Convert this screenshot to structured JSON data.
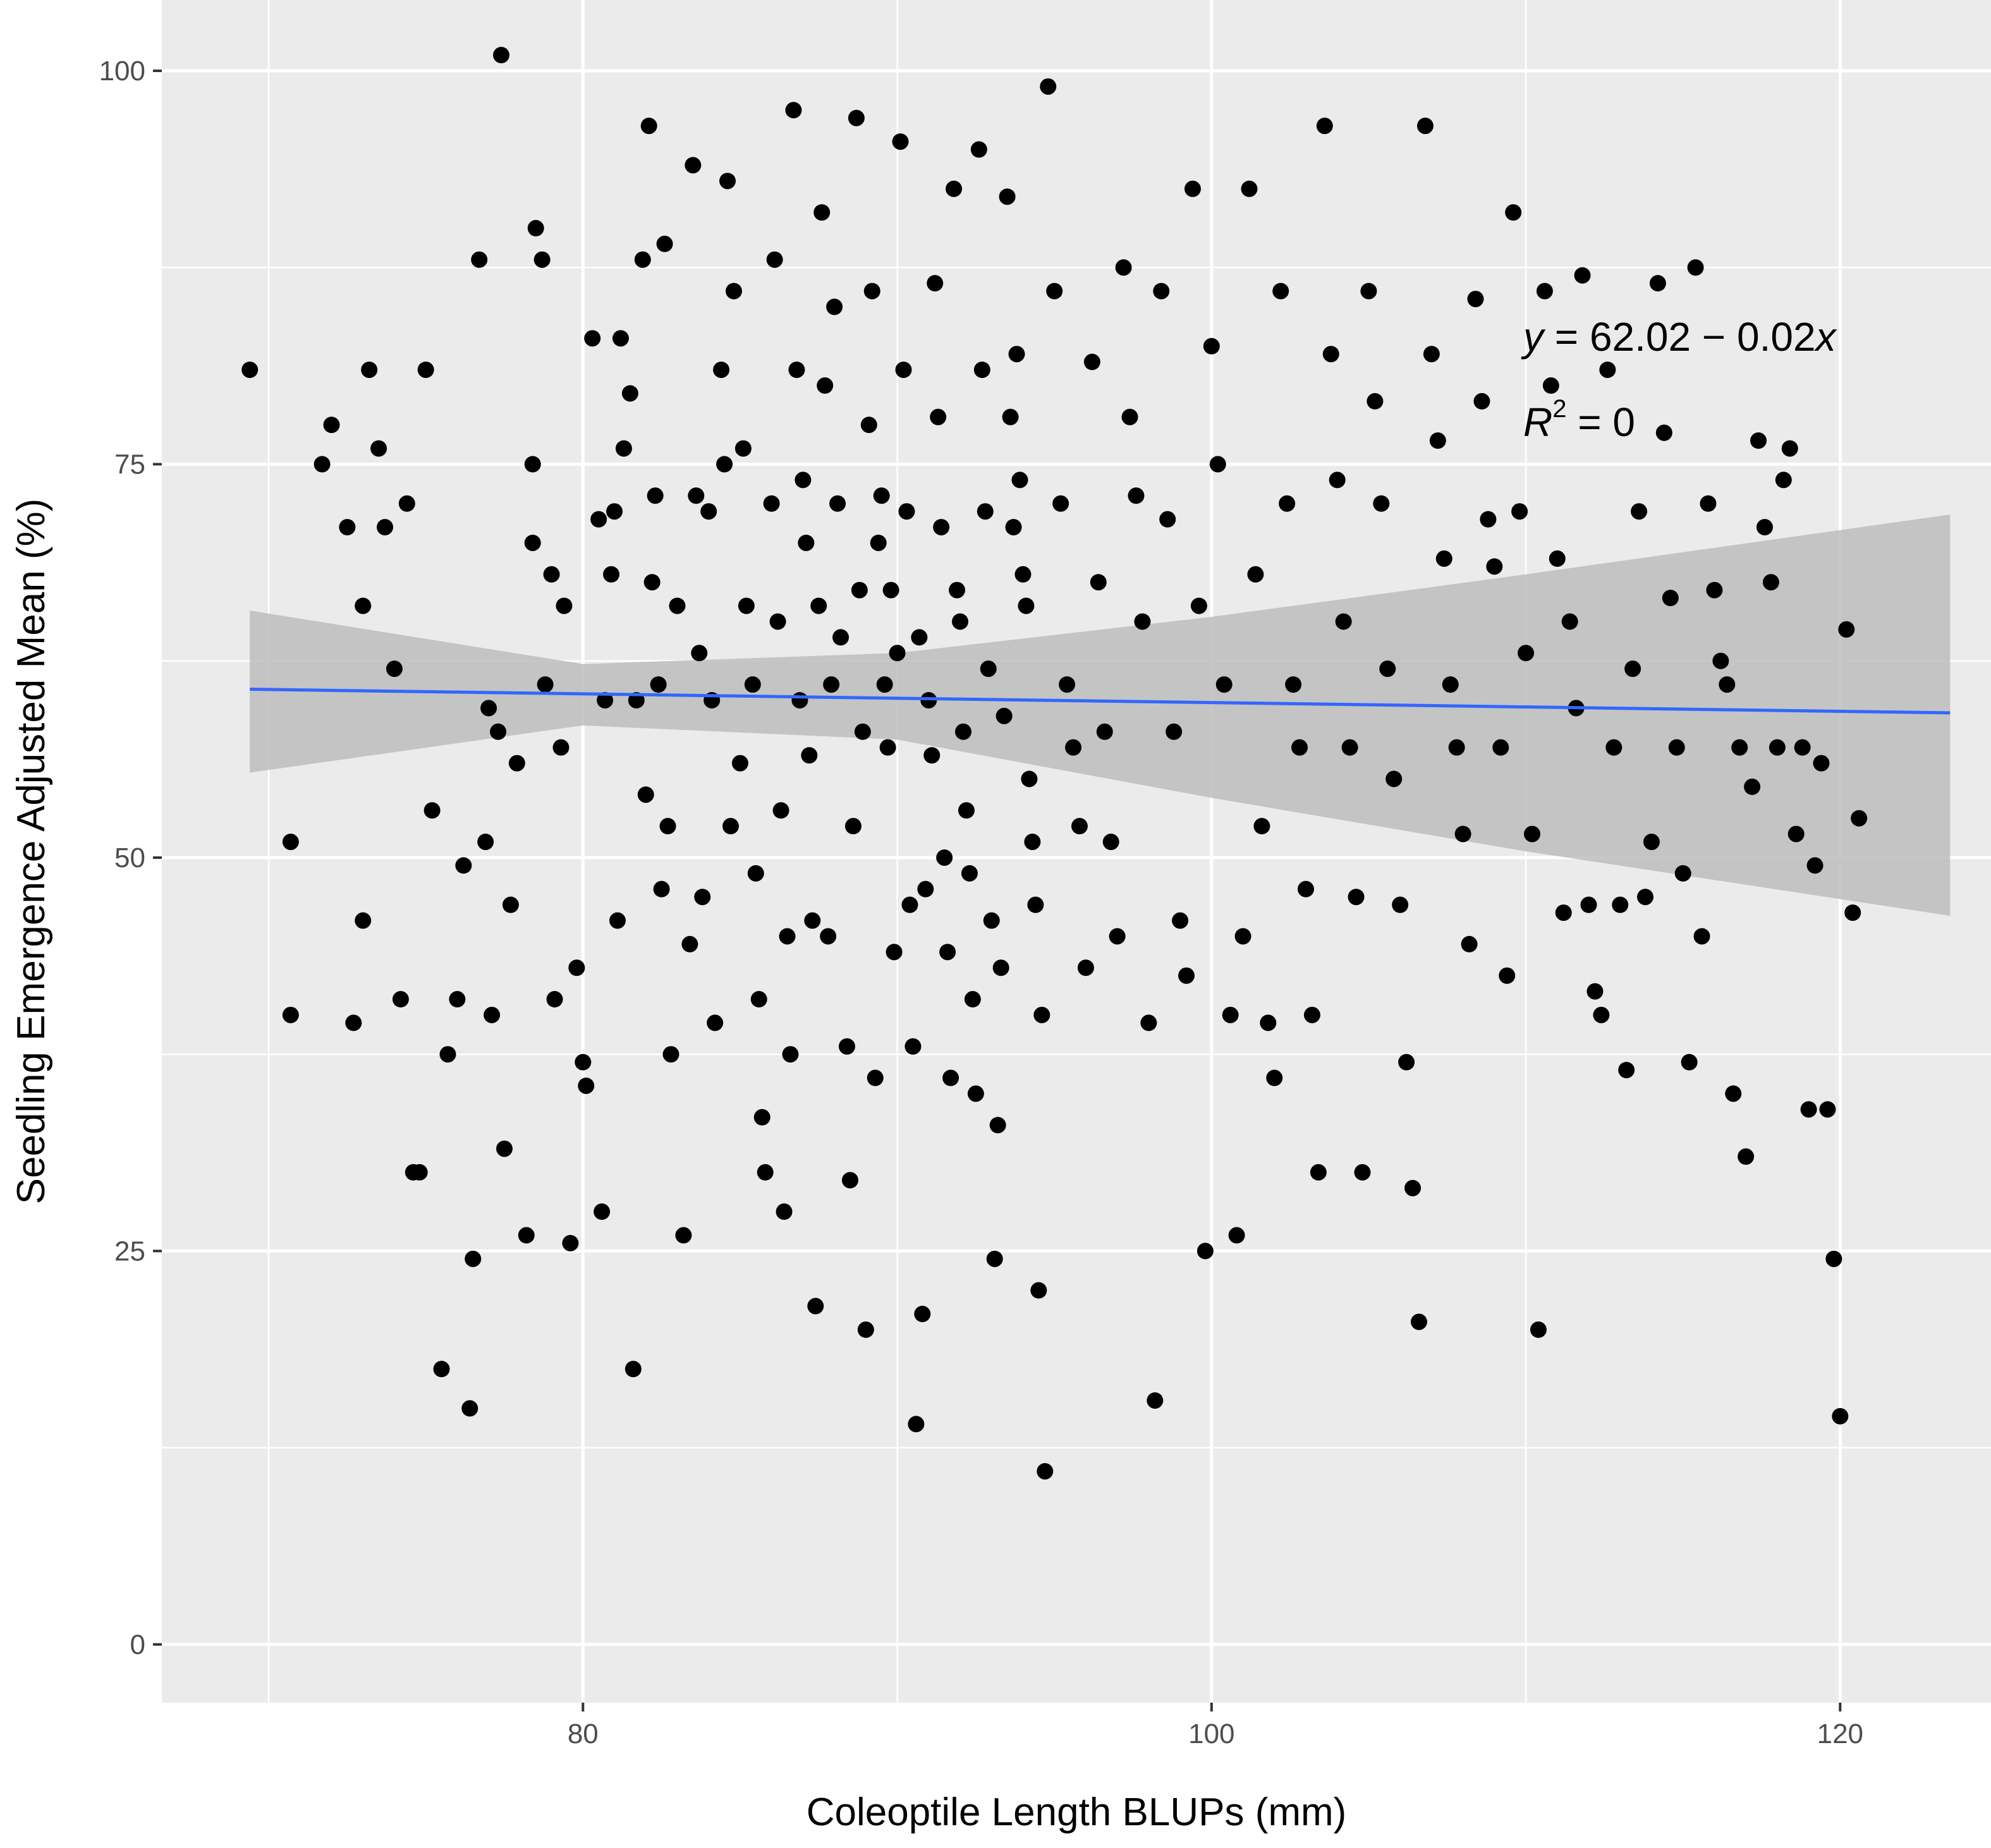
{
  "chart_data": {
    "type": "scatter",
    "title": "",
    "xlabel": "Coleoptile Length BLUPs (mm)",
    "ylabel": "Seedling Emergence Adjusted Mean (%)",
    "xlim": [
      66.6,
      124.8
    ],
    "ylim": [
      -3.7,
      104.5
    ],
    "xticks": [
      80,
      100,
      120
    ],
    "yticks": [
      0,
      25,
      50,
      75,
      100
    ],
    "grid": true,
    "legend": "none",
    "annotation": {
      "equation_y": "y",
      "equation_rhs": " = 62.02 − 0.02",
      "equation_x": "x",
      "r2_label": "R",
      "r2_sup": "2",
      "r2_rhs": " = 0"
    },
    "colors": {
      "panel": "#ebebeb",
      "grid": "#ffffff",
      "point": "#000000",
      "fit_line": "#3366ff",
      "ribbon": "#bdbdbd"
    },
    "fit": {
      "x": [
        69.4,
        123.5
      ],
      "y": [
        60.7,
        59.2
      ]
    },
    "ribbon": {
      "x": [
        69.4,
        80.0,
        90.0,
        100.0,
        110.0,
        123.5
      ],
      "upper": [
        65.7,
        62.3,
        63.0,
        65.3,
        68.0,
        71.8
      ],
      "lower": [
        55.4,
        58.4,
        57.5,
        53.8,
        50.4,
        46.3
      ]
    },
    "points": [
      [
        69.4,
        81
      ],
      [
        70.7,
        51
      ],
      [
        70.7,
        40
      ],
      [
        71.7,
        75
      ],
      [
        72,
        77.5
      ],
      [
        72.5,
        71
      ],
      [
        73,
        66
      ],
      [
        73.2,
        81
      ],
      [
        72.7,
        39.5
      ],
      [
        73,
        46
      ],
      [
        73.5,
        76
      ],
      [
        73.7,
        71
      ],
      [
        74,
        62
      ],
      [
        74.2,
        41
      ],
      [
        74.4,
        72.5
      ],
      [
        74.6,
        30
      ],
      [
        74.8,
        30
      ],
      [
        75,
        81
      ],
      [
        75.2,
        53
      ],
      [
        75.5,
        17.5
      ],
      [
        75.7,
        37.5
      ],
      [
        76,
        41
      ],
      [
        76.2,
        49.5
      ],
      [
        76.4,
        15
      ],
      [
        76.5,
        24.5
      ],
      [
        76.7,
        88
      ],
      [
        76.9,
        51
      ],
      [
        77,
        59.5
      ],
      [
        77.1,
        40
      ],
      [
        77.3,
        58
      ],
      [
        77.4,
        101
      ],
      [
        77.5,
        31.5
      ],
      [
        77.7,
        47
      ],
      [
        77.9,
        56
      ],
      [
        78.2,
        26
      ],
      [
        78.4,
        75
      ],
      [
        78.4,
        70
      ],
      [
        78.5,
        90
      ],
      [
        78.7,
        88
      ],
      [
        78.8,
        61
      ],
      [
        79,
        68
      ],
      [
        79.1,
        41
      ],
      [
        79.3,
        57
      ],
      [
        79.4,
        66
      ],
      [
        79.6,
        25.5
      ],
      [
        79.8,
        43
      ],
      [
        80,
        37
      ],
      [
        80.1,
        35.5
      ],
      [
        80.3,
        83
      ],
      [
        80.5,
        71.5
      ],
      [
        80.6,
        27.5
      ],
      [
        80.7,
        60
      ],
      [
        80.9,
        68
      ],
      [
        81,
        72
      ],
      [
        81.1,
        46
      ],
      [
        81.2,
        83
      ],
      [
        81.3,
        76
      ],
      [
        81.5,
        79.5
      ],
      [
        81.6,
        17.5
      ],
      [
        81.7,
        60
      ],
      [
        81.9,
        88
      ],
      [
        82,
        54
      ],
      [
        82.1,
        96.5
      ],
      [
        82.2,
        67.5
      ],
      [
        82.3,
        73
      ],
      [
        82.4,
        61
      ],
      [
        82.5,
        48
      ],
      [
        82.6,
        89
      ],
      [
        82.7,
        52
      ],
      [
        82.8,
        37.5
      ],
      [
        83,
        66
      ],
      [
        83.2,
        26
      ],
      [
        83.4,
        44.5
      ],
      [
        83.5,
        94
      ],
      [
        83.6,
        73
      ],
      [
        83.7,
        63
      ],
      [
        83.8,
        47.5
      ],
      [
        84,
        72
      ],
      [
        84.1,
        60
      ],
      [
        84.2,
        39.5
      ],
      [
        84.4,
        81
      ],
      [
        84.5,
        75
      ],
      [
        84.6,
        93
      ],
      [
        84.7,
        52
      ],
      [
        84.8,
        86
      ],
      [
        85,
        56
      ],
      [
        85.1,
        76
      ],
      [
        85.2,
        66
      ],
      [
        85.4,
        61
      ],
      [
        85.5,
        49
      ],
      [
        85.6,
        41
      ],
      [
        85.7,
        33.5
      ],
      [
        85.8,
        30
      ],
      [
        86,
        72.5
      ],
      [
        86.1,
        88
      ],
      [
        86.2,
        65
      ],
      [
        86.3,
        53
      ],
      [
        86.4,
        27.5
      ],
      [
        86.5,
        45
      ],
      [
        86.6,
        37.5
      ],
      [
        86.7,
        97.5
      ],
      [
        86.8,
        81
      ],
      [
        86.9,
        60
      ],
      [
        87,
        74
      ],
      [
        87.1,
        70
      ],
      [
        87.2,
        56.5
      ],
      [
        87.3,
        46
      ],
      [
        87.4,
        21.5
      ],
      [
        87.5,
        66
      ],
      [
        87.6,
        91
      ],
      [
        87.7,
        80
      ],
      [
        87.8,
        45
      ],
      [
        87.9,
        61
      ],
      [
        88,
        85
      ],
      [
        88.1,
        72.5
      ],
      [
        88.2,
        64
      ],
      [
        88.4,
        38
      ],
      [
        88.5,
        29.5
      ],
      [
        88.6,
        52
      ],
      [
        88.7,
        97
      ],
      [
        88.8,
        67
      ],
      [
        88.9,
        58
      ],
      [
        89,
        20
      ],
      [
        89.1,
        77.5
      ],
      [
        89.2,
        86
      ],
      [
        89.3,
        36
      ],
      [
        89.4,
        70
      ],
      [
        89.5,
        73
      ],
      [
        89.6,
        61
      ],
      [
        89.7,
        57
      ],
      [
        89.8,
        67
      ],
      [
        89.9,
        44
      ],
      [
        90,
        63
      ],
      [
        90.1,
        95.5
      ],
      [
        90.2,
        81
      ],
      [
        90.3,
        72
      ],
      [
        90.4,
        47
      ],
      [
        90.5,
        38
      ],
      [
        90.6,
        14
      ],
      [
        90.7,
        64
      ],
      [
        90.8,
        21
      ],
      [
        90.9,
        48
      ],
      [
        91,
        60
      ],
      [
        91.1,
        56.5
      ],
      [
        91.2,
        86.5
      ],
      [
        91.3,
        78
      ],
      [
        91.4,
        71
      ],
      [
        91.5,
        50
      ],
      [
        91.6,
        44
      ],
      [
        91.7,
        36
      ],
      [
        91.8,
        92.5
      ],
      [
        91.9,
        67
      ],
      [
        92,
        65
      ],
      [
        92.1,
        58
      ],
      [
        92.2,
        53
      ],
      [
        92.3,
        49
      ],
      [
        92.4,
        41
      ],
      [
        92.5,
        35
      ],
      [
        92.6,
        95
      ],
      [
        92.7,
        81
      ],
      [
        92.8,
        72
      ],
      [
        92.9,
        62
      ],
      [
        93,
        46
      ],
      [
        93.1,
        24.5
      ],
      [
        93.2,
        33
      ],
      [
        93.3,
        43
      ],
      [
        93.4,
        59
      ],
      [
        93.5,
        92
      ],
      [
        93.6,
        78
      ],
      [
        93.7,
        71
      ],
      [
        93.8,
        82
      ],
      [
        93.9,
        74
      ],
      [
        94,
        68
      ],
      [
        94.1,
        66
      ],
      [
        94.2,
        55
      ],
      [
        94.3,
        51
      ],
      [
        94.4,
        47
      ],
      [
        94.5,
        22.5
      ],
      [
        94.6,
        40
      ],
      [
        94.7,
        11
      ],
      [
        94.8,
        99
      ],
      [
        95,
        86
      ],
      [
        95.2,
        72.5
      ],
      [
        95.4,
        61
      ],
      [
        95.6,
        57
      ],
      [
        95.8,
        52
      ],
      [
        96,
        43
      ],
      [
        96.2,
        81.5
      ],
      [
        96.4,
        67.5
      ],
      [
        96.6,
        58
      ],
      [
        96.8,
        51
      ],
      [
        97,
        45
      ],
      [
        97.2,
        87.5
      ],
      [
        97.4,
        78
      ],
      [
        97.6,
        73
      ],
      [
        97.8,
        65
      ],
      [
        98,
        39.5
      ],
      [
        98.2,
        15.5
      ],
      [
        98.4,
        86
      ],
      [
        98.6,
        71.5
      ],
      [
        98.8,
        58
      ],
      [
        99,
        46
      ],
      [
        99.2,
        42.5
      ],
      [
        99.4,
        92.5
      ],
      [
        99.6,
        66
      ],
      [
        99.8,
        25
      ],
      [
        100,
        82.5
      ],
      [
        100.2,
        75
      ],
      [
        100.4,
        61
      ],
      [
        100.6,
        40
      ],
      [
        100.8,
        26
      ],
      [
        101,
        45
      ],
      [
        101.2,
        92.5
      ],
      [
        101.4,
        68
      ],
      [
        101.6,
        52
      ],
      [
        101.8,
        39.5
      ],
      [
        102,
        36
      ],
      [
        102.2,
        86
      ],
      [
        102.4,
        72.5
      ],
      [
        102.6,
        61
      ],
      [
        102.8,
        57
      ],
      [
        103,
        48
      ],
      [
        103.2,
        40
      ],
      [
        103.4,
        30
      ],
      [
        103.6,
        96.5
      ],
      [
        103.8,
        82
      ],
      [
        104,
        74
      ],
      [
        104.2,
        65
      ],
      [
        104.4,
        57
      ],
      [
        104.6,
        47.5
      ],
      [
        104.8,
        30
      ],
      [
        105,
        86
      ],
      [
        105.2,
        79
      ],
      [
        105.4,
        72.5
      ],
      [
        105.6,
        62
      ],
      [
        105.8,
        55
      ],
      [
        106,
        47
      ],
      [
        106.2,
        37
      ],
      [
        106.4,
        29
      ],
      [
        106.6,
        20.5
      ],
      [
        106.8,
        96.5
      ],
      [
        107,
        82
      ],
      [
        107.2,
        76.5
      ],
      [
        107.4,
        69
      ],
      [
        107.6,
        61
      ],
      [
        107.8,
        57
      ],
      [
        108,
        51.5
      ],
      [
        108.2,
        44.5
      ],
      [
        108.4,
        85.5
      ],
      [
        108.6,
        79
      ],
      [
        108.8,
        71.5
      ],
      [
        109,
        68.5
      ],
      [
        109.2,
        57
      ],
      [
        109.4,
        42.5
      ],
      [
        109.6,
        91
      ],
      [
        109.8,
        72
      ],
      [
        110,
        63
      ],
      [
        110.2,
        51.5
      ],
      [
        110.4,
        20
      ],
      [
        110.6,
        86
      ],
      [
        110.8,
        80
      ],
      [
        111,
        69
      ],
      [
        111.2,
        46.5
      ],
      [
        111.4,
        65
      ],
      [
        111.6,
        59.5
      ],
      [
        111.8,
        87
      ],
      [
        112,
        47
      ],
      [
        112.2,
        41.5
      ],
      [
        112.4,
        40
      ],
      [
        112.6,
        81
      ],
      [
        112.8,
        57
      ],
      [
        113,
        47
      ],
      [
        113.2,
        36.5
      ],
      [
        113.4,
        62
      ],
      [
        113.6,
        72
      ],
      [
        113.8,
        47.5
      ],
      [
        114,
        51
      ],
      [
        114.2,
        86.5
      ],
      [
        114.4,
        77
      ],
      [
        114.6,
        66.5
      ],
      [
        114.8,
        57
      ],
      [
        115,
        49
      ],
      [
        115.2,
        37
      ],
      [
        115.4,
        87.5
      ],
      [
        115.6,
        45
      ],
      [
        115.8,
        72.5
      ],
      [
        116,
        67
      ],
      [
        116.2,
        62.5
      ],
      [
        116.4,
        61
      ],
      [
        116.6,
        35
      ],
      [
        116.8,
        57
      ],
      [
        117,
        31
      ],
      [
        117.2,
        54.5
      ],
      [
        117.4,
        76.5
      ],
      [
        117.6,
        71
      ],
      [
        117.8,
        67.5
      ],
      [
        118,
        57
      ],
      [
        118.2,
        74
      ],
      [
        118.4,
        76
      ],
      [
        118.6,
        51.5
      ],
      [
        118.8,
        57
      ],
      [
        119,
        34
      ],
      [
        119.2,
        49.5
      ],
      [
        119.4,
        56
      ],
      [
        119.6,
        34
      ],
      [
        119.8,
        24.5
      ],
      [
        120,
        14.5
      ],
      [
        120.2,
        64.5
      ],
      [
        120.4,
        46.5
      ],
      [
        120.6,
        52.5
      ]
    ]
  }
}
